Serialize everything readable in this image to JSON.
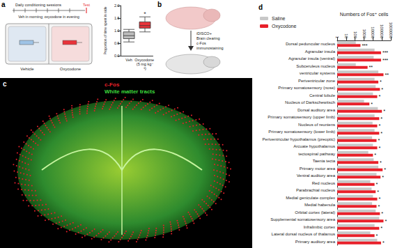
{
  "panel_labels": [
    "a",
    "b",
    "c",
    "d"
  ],
  "panel_a_schematic": {
    "timeline_label": "Daily conditioning sessions",
    "schedule": "Veh in morning; oxycodone in evening",
    "test_label": "Test",
    "chambers": [
      "Vehicle",
      "Oxycodone"
    ]
  },
  "panel_b_schematic": {
    "steps": [
      "iDISCO+",
      "Brain clearing",
      "c-Fos",
      "immunostaining"
    ]
  },
  "panel_c_image": {
    "labels": [
      {
        "text": "c-Fos",
        "color": "#e8202a"
      },
      {
        "text": "White matter tracts",
        "color": "#3ddc3d"
      }
    ]
  },
  "chart_data": [
    {
      "type": "boxplot",
      "categories": [
        "Veh",
        "Oxycodone (5 mg kg⁻¹)"
      ],
      "boxes": [
        [
          0.55,
          0.68,
          0.8,
          0.95,
          1.05
        ],
        [
          0.95,
          1.1,
          1.2,
          1.35,
          1.55
        ]
      ],
      "colors": [
        "#bdbdbd",
        "#e8333a"
      ],
      "y_label": "Proportion of time spent in side",
      "ylim": [
        0,
        2
      ],
      "yticks": [
        {
          "value": 0,
          "label": "0.0"
        },
        {
          "value": 0.5,
          "label": "0.5"
        },
        {
          "value": 1,
          "label": "1.0"
        },
        {
          "value": 1.5,
          "label": "1.5"
        },
        {
          "value": 2,
          "label": "2.0"
        }
      ],
      "annotations": [
        {
          "category": "Oxycodone (5 mg kg⁻¹)",
          "text": "*"
        }
      ],
      "grid": false
    },
    {
      "type": "bar",
      "orientation": "horizontal",
      "log": "x",
      "x_label": "Numbers of Fos⁺ cells",
      "categories": [
        "Dorsal peduncular nucleus",
        "Agranular insula",
        "Agranular insula (ventral)",
        "Subceruleus nucleus",
        "ventricular systems",
        "Periventricular zone",
        "Primary somatosensory (nose)",
        "Central lobule",
        "Nucleus of Darkschewitsch",
        "Dorsal auditory area",
        "Primary somatosensory (upper limb)",
        "Nucleus of reuniens",
        "Primary somatosensory (lower limb)",
        "Periventricular hypothalamus (preoptic)",
        "Arcuate hypothalamus",
        "tectospinal pathway",
        "Taenia tecta",
        "Primary motor area",
        "Ventral auditory area",
        "Red nucleus",
        "Parabrachial nucleus",
        "Medial geniculate complex",
        "Medial habenula",
        "Orbital cortex (lateral)",
        "Supplemental somatosensory area",
        "Infralimbic cortex",
        "Lateral dorsal nucleus of thalamus",
        "Primary auditory area"
      ],
      "series": [
        {
          "name": "Saline",
          "color": "#c8c8c8",
          "values": [
            120,
            15000,
            12000,
            120,
            40000,
            15000,
            20000,
            10000,
            1000,
            35000,
            15000,
            9000,
            15000,
            8000,
            10000,
            3000,
            12000,
            40000,
            25000,
            5000,
            7000,
            10000,
            8000,
            20000,
            50000,
            15000,
            5000,
            30000
          ]
        },
        {
          "name": "Oxycodone",
          "color": "#e8202a",
          "values": [
            400,
            80000,
            80000,
            2500,
            150000,
            40000,
            60000,
            30000,
            4000,
            100000,
            50000,
            30000,
            50000,
            25000,
            30000,
            10000,
            40000,
            120000,
            70000,
            15000,
            20000,
            30000,
            25000,
            60000,
            150000,
            50000,
            15000,
            80000
          ]
        }
      ],
      "annotations": [
        "***",
        "***",
        "***",
        "**",
        "**",
        "*",
        "*",
        "*",
        "*",
        "*",
        "*",
        "*",
        "*",
        "*",
        "*",
        "*",
        "*",
        "*",
        "*",
        "*",
        "*",
        "*",
        "*",
        "*",
        "*",
        "*",
        "*",
        "*"
      ],
      "xlim": [
        1,
        1000000
      ],
      "xticks": [
        1,
        10,
        100,
        1000,
        10000,
        100000,
        1000000
      ],
      "legend": "top-left",
      "grid": false
    }
  ]
}
